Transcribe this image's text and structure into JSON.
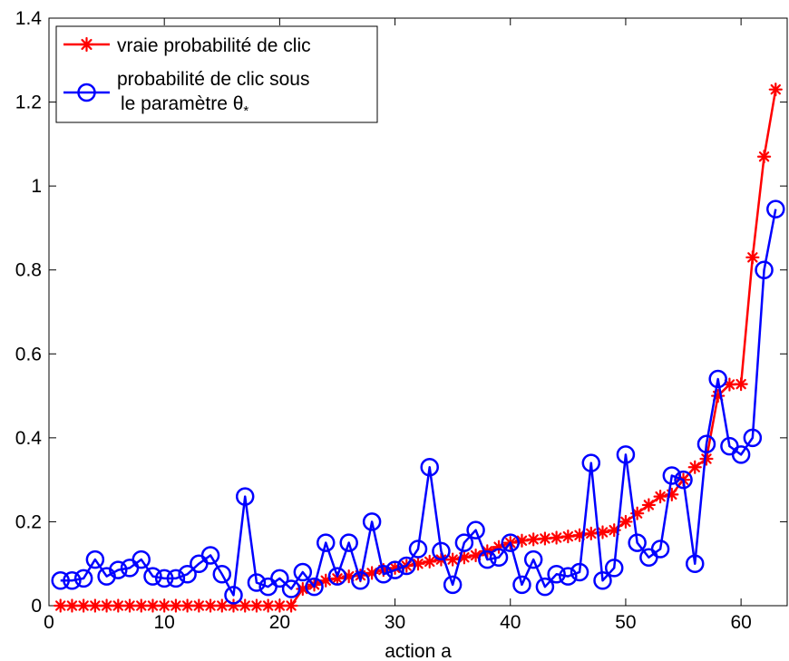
{
  "chart_data": {
    "type": "line",
    "title": "",
    "xlabel": "action a",
    "ylabel": "",
    "xlim": [
      0,
      64
    ],
    "ylim": [
      0,
      1.4
    ],
    "xticks": [
      0,
      10,
      20,
      30,
      40,
      50,
      60
    ],
    "yticks": [
      0,
      0.2,
      0.4,
      0.6,
      0.8,
      1,
      1.2,
      1.4
    ],
    "grid": false,
    "legend_position": "top-left",
    "x": [
      1,
      2,
      3,
      4,
      5,
      6,
      7,
      8,
      9,
      10,
      11,
      12,
      13,
      14,
      15,
      16,
      17,
      18,
      19,
      20,
      21,
      22,
      23,
      24,
      25,
      26,
      27,
      28,
      29,
      30,
      31,
      32,
      33,
      34,
      35,
      36,
      37,
      38,
      39,
      40,
      41,
      42,
      43,
      44,
      45,
      46,
      47,
      48,
      49,
      50,
      51,
      52,
      53,
      54,
      55,
      56,
      57,
      58,
      59,
      60,
      61,
      62,
      63
    ],
    "series": [
      {
        "name": "vraie probabilité de clic",
        "color": "#ff0000",
        "marker": "asterisk",
        "values": [
          0,
          0,
          0,
          0,
          0,
          0,
          0,
          0,
          0,
          0,
          0,
          0,
          0,
          0,
          0,
          0,
          0,
          0,
          0,
          0,
          0,
          0.04,
          0.05,
          0.06,
          0.065,
          0.07,
          0.072,
          0.078,
          0.085,
          0.09,
          0.095,
          0.1,
          0.105,
          0.11,
          0.11,
          0.115,
          0.12,
          0.13,
          0.14,
          0.15,
          0.155,
          0.158,
          0.16,
          0.162,
          0.165,
          0.168,
          0.172,
          0.175,
          0.18,
          0.2,
          0.22,
          0.24,
          0.26,
          0.265,
          0.3,
          0.33,
          0.35,
          0.5,
          0.527,
          0.528,
          0.83,
          1.07,
          1.23
        ]
      },
      {
        "name_lines": [
          "probabilité de clic sous",
          "le paramètre θ"
        ],
        "name_subscript": "*",
        "color": "#0000ff",
        "marker": "circle",
        "values": [
          0.06,
          0.06,
          0.065,
          0.11,
          0.07,
          0.085,
          0.09,
          0.11,
          0.07,
          0.065,
          0.065,
          0.075,
          0.1,
          0.12,
          0.075,
          0.025,
          0.26,
          0.055,
          0.045,
          0.065,
          0.04,
          0.08,
          0.045,
          0.15,
          0.07,
          0.15,
          0.06,
          0.2,
          0.075,
          0.085,
          0.095,
          0.135,
          0.33,
          0.13,
          0.05,
          0.15,
          0.18,
          0.11,
          0.115,
          0.15,
          0.05,
          0.11,
          0.045,
          0.075,
          0.07,
          0.08,
          0.34,
          0.06,
          0.09,
          0.36,
          0.15,
          0.115,
          0.135,
          0.31,
          0.3,
          0.1,
          0.385,
          0.54,
          0.38,
          0.36,
          0.4,
          0.8,
          0.945
        ]
      }
    ]
  }
}
